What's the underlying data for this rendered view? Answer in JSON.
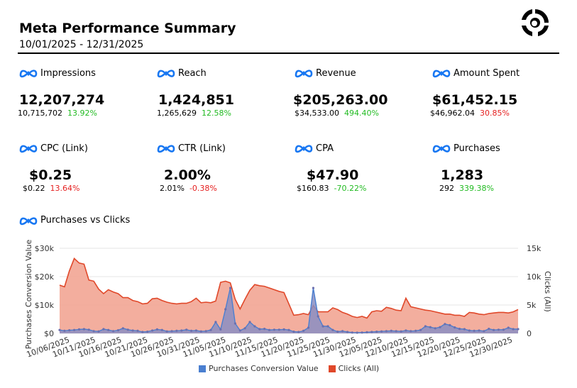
{
  "header": {
    "title": "Meta Performance Summary",
    "date_range": "10/01/2025 - 12/31/2025"
  },
  "brand": {
    "meta_blue": "#1877f2",
    "logo_icon": "orbit-logo-icon"
  },
  "kpis": [
    {
      "label": "Impressions",
      "value": "12,207,274",
      "previous": "10,715,702",
      "change": "13.92%",
      "trend": "pos"
    },
    {
      "label": "Reach",
      "value": "1,424,851",
      "previous": "1,265,629",
      "change": "12.58%",
      "trend": "pos"
    },
    {
      "label": "Revenue",
      "value": "$205,263.00",
      "previous": "$34,533.00",
      "change": "494.40%",
      "trend": "pos"
    },
    {
      "label": "Amount Spent",
      "value": "$61,452.15",
      "previous": "$46,962.04",
      "change": "30.85%",
      "trend": "neg"
    },
    {
      "label": "CPC (Link)",
      "value": "$0.25",
      "previous": "$0.22",
      "change": "13.64%",
      "trend": "neg"
    },
    {
      "label": "CTR (Link)",
      "value": "2.00%",
      "previous": "2.01%",
      "change": "-0.38%",
      "trend": "neg"
    },
    {
      "label": "CPA",
      "value": "$47.90",
      "previous": "$160.83",
      "change": "-70.22%",
      "trend": "pos"
    },
    {
      "label": "Purchases",
      "value": "1,283",
      "previous": "292",
      "change": "339.38%",
      "trend": "pos"
    }
  ],
  "chart_section": {
    "title": "Purchases vs Clicks"
  },
  "chart_data": {
    "type": "area",
    "title": "Purchases vs Clicks",
    "x_start": "2025-10-04",
    "x_end": "2025-12-31",
    "xticks": [
      "10/06/2025",
      "10/11/2025",
      "10/16/2025",
      "10/21/2025",
      "10/26/2025",
      "10/31/2025",
      "11/05/2025",
      "11/10/2025",
      "11/15/2025",
      "11/20/2025",
      "11/25/2025",
      "11/30/2025",
      "12/05/2025",
      "12/10/2025",
      "12/15/2025",
      "12/20/2025",
      "12/25/2025",
      "12/30/2025"
    ],
    "y_left": {
      "label": "Purchases Conversion Value",
      "lim": [
        0,
        30000
      ],
      "ticks": [
        "$0",
        "$10k",
        "$20k",
        "$30k"
      ]
    },
    "y_right": {
      "label": "Clicks (All)",
      "lim": [
        0,
        15000
      ],
      "ticks": [
        "0",
        "5k",
        "10k",
        "15k"
      ]
    },
    "series": [
      {
        "name": "Clicks (All)",
        "axis": "right",
        "color": "#e0482a",
        "fill": "#f2a594",
        "values": [
          8500,
          8200,
          11000,
          13200,
          12400,
          12200,
          9400,
          9200,
          7800,
          7000,
          7700,
          7300,
          7000,
          6300,
          6300,
          5800,
          5600,
          5200,
          5300,
          6100,
          6200,
          5800,
          5500,
          5300,
          5200,
          5300,
          5300,
          5600,
          6200,
          5400,
          5500,
          5400,
          5700,
          9000,
          9200,
          8900,
          6000,
          4300,
          6000,
          7600,
          8600,
          8400,
          8300,
          8000,
          7700,
          7400,
          7200,
          5200,
          3200,
          3300,
          3500,
          3300,
          4900,
          3800,
          3800,
          3800,
          4500,
          4200,
          3700,
          3400,
          3000,
          2800,
          3000,
          2700,
          3800,
          4000,
          3900,
          4600,
          4400,
          4100,
          4000,
          6200,
          4700,
          4500,
          4300,
          4100,
          4000,
          3800,
          3600,
          3400,
          3400,
          3200,
          3200,
          3000,
          3700,
          3600,
          3400,
          3300,
          3500,
          3600,
          3700,
          3700,
          3600,
          3800,
          4200
        ]
      },
      {
        "name": "Purchases Conversion Value",
        "axis": "left",
        "color": "#4a7fd0",
        "fill": "#8a8ec2",
        "values": [
          1200,
          900,
          1100,
          1200,
          1400,
          1500,
          1300,
          800,
          700,
          1500,
          1200,
          800,
          1100,
          1800,
          1300,
          1000,
          900,
          500,
          600,
          1000,
          1400,
          1200,
          700,
          800,
          900,
          1000,
          1300,
          900,
          1000,
          700,
          800,
          1200,
          4000,
          1400,
          8500,
          16000,
          3500,
          1000,
          1800,
          4000,
          2500,
          1500,
          1600,
          1200,
          1300,
          1300,
          1400,
          1200,
          600,
          500,
          900,
          2000,
          16000,
          6000,
          2500,
          2500,
          1200,
          600,
          800,
          500,
          300,
          250,
          300,
          400,
          500,
          600,
          700,
          800,
          900,
          800,
          700,
          1000,
          800,
          900,
          1200,
          2500,
          2200,
          1800,
          2200,
          3300,
          2900,
          2100,
          1600,
          1500,
          1000,
          900,
          1000,
          800,
          1600,
          1200,
          1300,
          1300,
          2000,
          1500,
          1500
        ]
      }
    ]
  }
}
